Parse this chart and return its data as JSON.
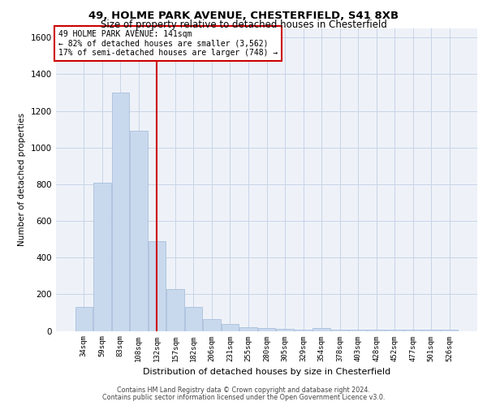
{
  "title_line1": "49, HOLME PARK AVENUE, CHESTERFIELD, S41 8XB",
  "title_line2": "Size of property relative to detached houses in Chesterfield",
  "xlabel": "Distribution of detached houses by size in Chesterfield",
  "ylabel": "Number of detached properties",
  "footer_line1": "Contains HM Land Registry data © Crown copyright and database right 2024.",
  "footer_line2": "Contains public sector information licensed under the Open Government Licence v3.0.",
  "bar_color": "#c9d9ed",
  "bar_edgecolor": "#a0b8d8",
  "vline_color": "#cc0000",
  "annotation_box_color": "#cc0000",
  "annotation_text_line1": "49 HOLME PARK AVENUE: 141sqm",
  "annotation_text_line2": "← 82% of detached houses are smaller (3,562)",
  "annotation_text_line3": "17% of semi-detached houses are larger (748) →",
  "categories": [
    "34sqm",
    "59sqm",
    "83sqm",
    "108sqm",
    "132sqm",
    "157sqm",
    "182sqm",
    "206sqm",
    "231sqm",
    "255sqm",
    "280sqm",
    "305sqm",
    "329sqm",
    "354sqm",
    "378sqm",
    "403sqm",
    "428sqm",
    "452sqm",
    "477sqm",
    "501sqm",
    "526sqm"
  ],
  "values": [
    130,
    810,
    1300,
    1090,
    490,
    230,
    130,
    65,
    38,
    22,
    15,
    10,
    5,
    15,
    5,
    5,
    5,
    5,
    5,
    5,
    5
  ],
  "ylim": [
    0,
    1650
  ],
  "yticks": [
    0,
    200,
    400,
    600,
    800,
    1000,
    1200,
    1400,
    1600
  ],
  "vline_x": 4.0,
  "grid_color": "#c8d4e8",
  "background_color": "#eef2f8"
}
